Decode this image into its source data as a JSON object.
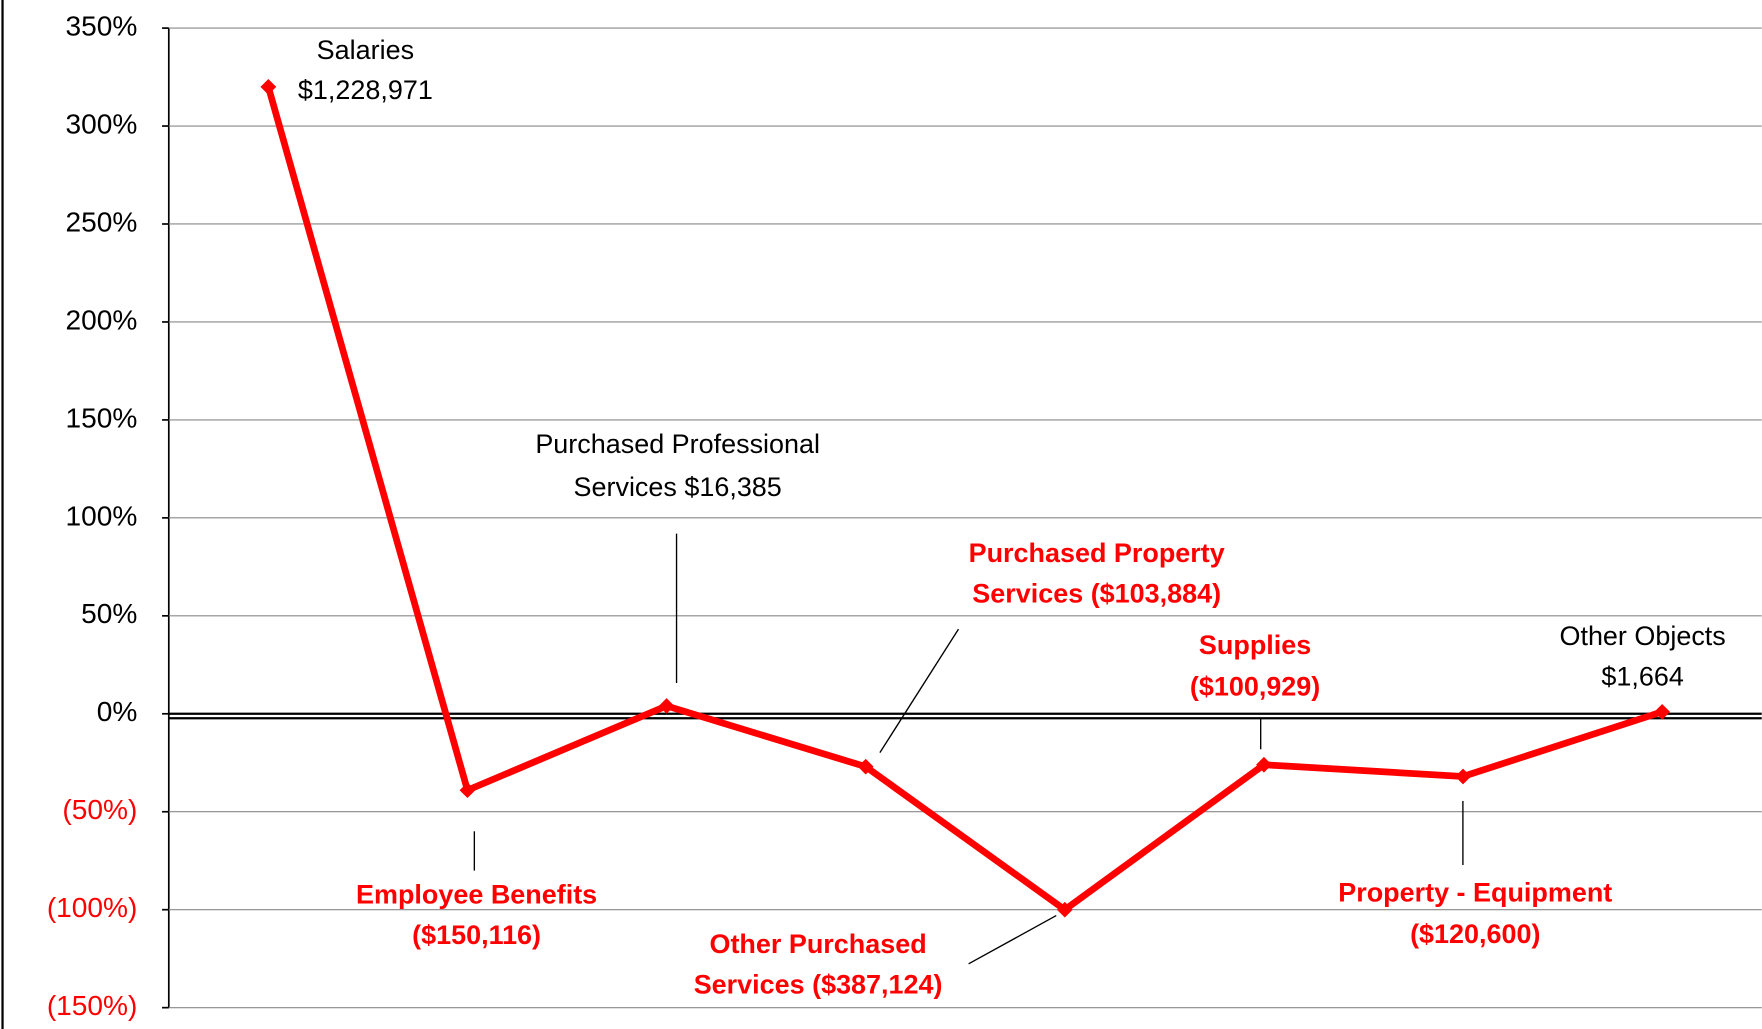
{
  "chart_data": {
    "type": "line",
    "categories": [
      null,
      null,
      null,
      null,
      null,
      null,
      null,
      null
    ],
    "series": [
      {
        "color": "#ff0000",
        "values": [
          320,
          -39,
          4,
          -27,
          -100,
          -26,
          -32,
          1
        ]
      }
    ],
    "annotations": [
      [
        "Salaries",
        "$1,228,971"
      ],
      [
        "Employee Benefits",
        "($150,116)"
      ],
      [
        "Purchased Professional",
        "Services $16,385"
      ],
      [
        "Purchased Property",
        "Services ($103,884)"
      ],
      [
        "Other Purchased",
        "Services ($387,124)"
      ],
      [
        "Supplies",
        "($100,929)"
      ],
      [
        "Property - Equipment",
        "($120,600)"
      ],
      [
        "Other Objects",
        "$1,664"
      ]
    ],
    "ylim": [
      -150,
      350
    ],
    "yticks": [
      {
        "value": -150,
        "label": "(150%)"
      },
      {
        "value": -100,
        "label": "(100%)"
      },
      {
        "value": -50,
        "label": "(50%)"
      },
      {
        "value": 0,
        "label": "0%"
      },
      {
        "value": 50,
        "label": "50%"
      },
      {
        "value": 100,
        "label": "100%"
      },
      {
        "value": 150,
        "label": "150%"
      },
      {
        "value": 200,
        "label": "200%"
      },
      {
        "value": 250,
        "label": "250%"
      },
      {
        "value": 300,
        "label": "300%"
      },
      {
        "value": 350,
        "label": "350%"
      }
    ],
    "grid": true
  }
}
